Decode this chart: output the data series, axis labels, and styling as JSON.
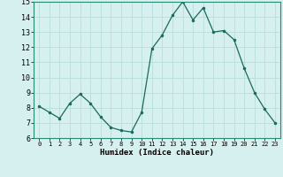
{
  "x": [
    0,
    1,
    2,
    3,
    4,
    5,
    6,
    7,
    8,
    9,
    10,
    11,
    12,
    13,
    14,
    15,
    16,
    17,
    18,
    19,
    20,
    21,
    22,
    23
  ],
  "y": [
    8.1,
    7.7,
    7.3,
    8.3,
    8.9,
    8.3,
    7.4,
    6.7,
    6.5,
    6.4,
    7.7,
    11.9,
    12.8,
    14.1,
    15.0,
    13.8,
    14.6,
    13.0,
    13.1,
    12.5,
    10.6,
    9.0,
    7.9,
    7.0
  ],
  "xlabel": "Humidex (Indice chaleur)",
  "ylim": [
    6,
    15
  ],
  "xlim_min": -0.5,
  "xlim_max": 23.5,
  "yticks": [
    6,
    7,
    8,
    9,
    10,
    11,
    12,
    13,
    14,
    15
  ],
  "xticks": [
    0,
    1,
    2,
    3,
    4,
    5,
    6,
    7,
    8,
    9,
    10,
    11,
    12,
    13,
    14,
    15,
    16,
    17,
    18,
    19,
    20,
    21,
    22,
    23
  ],
  "line_color": "#1a6b5a",
  "marker_color": "#1a6b5a",
  "bg_color": "#d5f0ee",
  "grid_color": "#b8deda"
}
